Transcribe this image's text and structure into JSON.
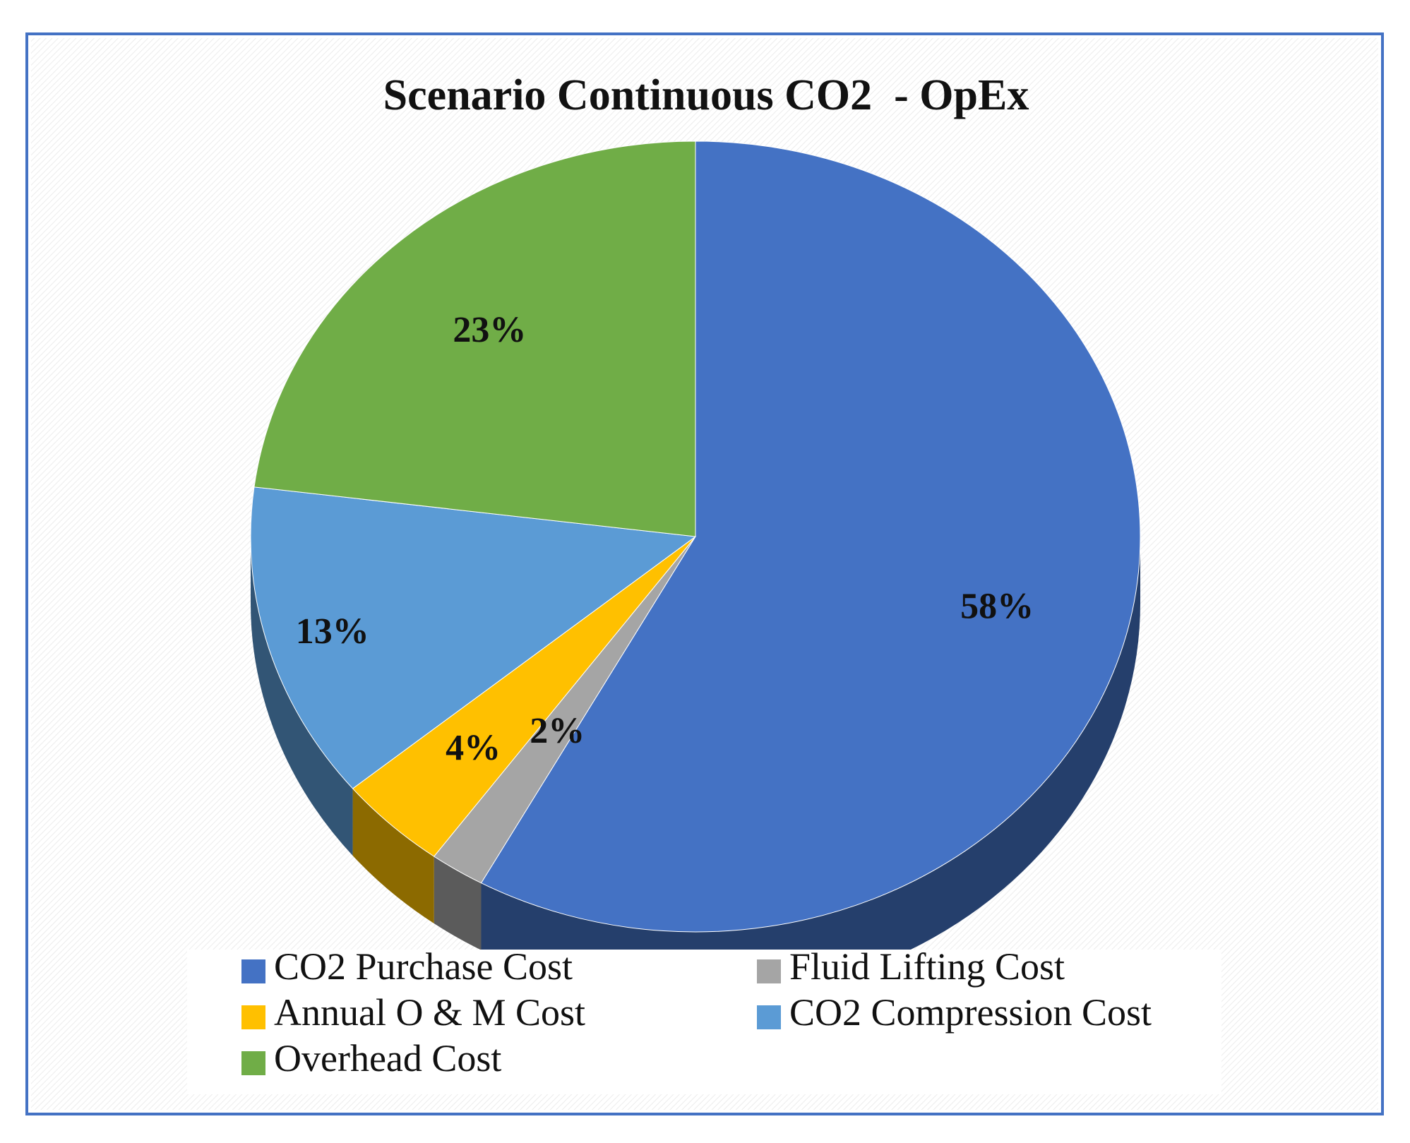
{
  "chart_data": {
    "type": "pie",
    "title": "Scenario Continuous CO2  - OpEx",
    "categories": [
      "CO2 Purchase Cost",
      "Fluid Lifting Cost",
      "Annual O & M Cost",
      "CO2 Compression Cost",
      "Overhead Cost"
    ],
    "values": [
      58,
      2,
      4,
      13,
      23
    ],
    "labels": [
      "58%",
      "2%",
      "4%",
      "13%",
      "23%"
    ],
    "colors": [
      "#4472C4",
      "#A5A5A5",
      "#FFC000",
      "#5B9BD5",
      "#70AD47"
    ],
    "legend_position": "bottom",
    "style": "3d"
  }
}
